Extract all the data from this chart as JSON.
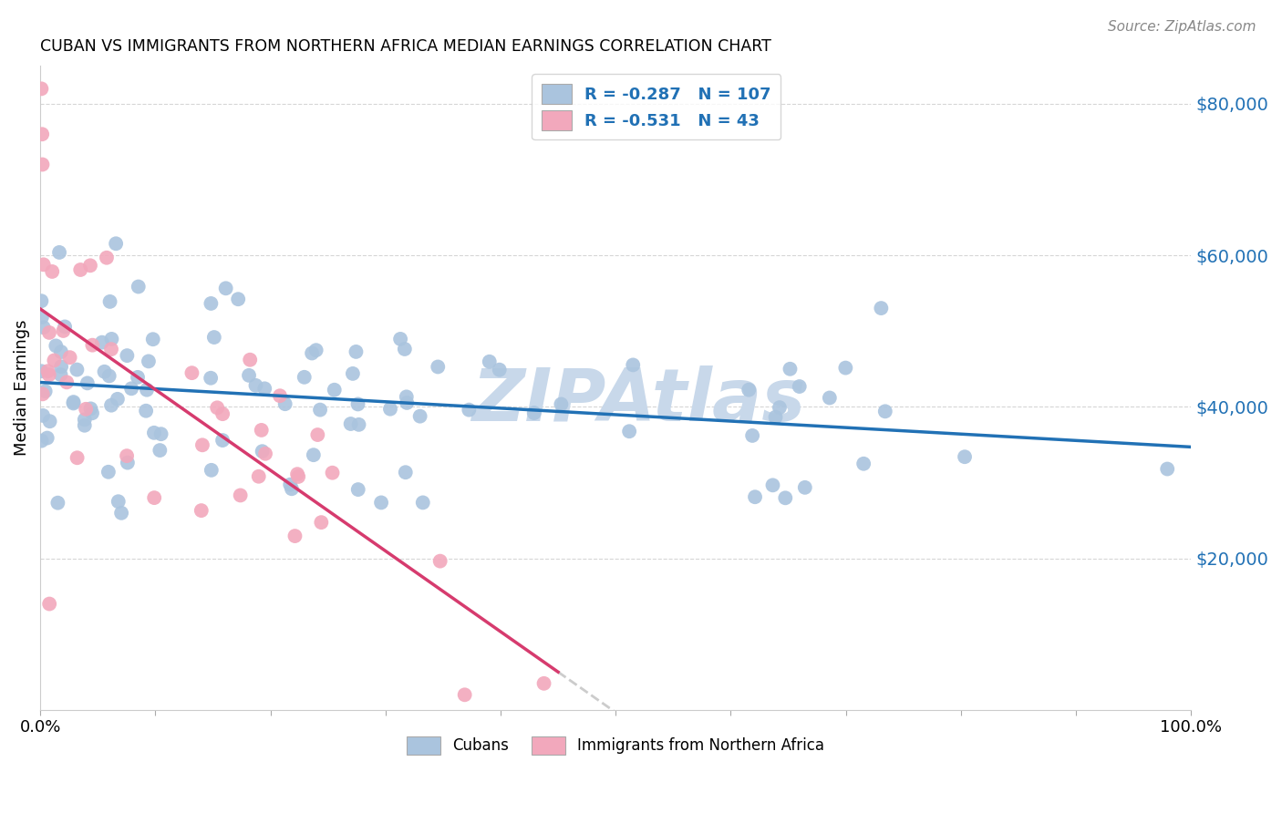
{
  "title": "CUBAN VS IMMIGRANTS FROM NORTHERN AFRICA MEDIAN EARNINGS CORRELATION CHART",
  "source": "Source: ZipAtlas.com",
  "ylabel": "Median Earnings",
  "y_ticks": [
    20000,
    40000,
    60000,
    80000
  ],
  "y_tick_labels": [
    "$20,000",
    "$40,000",
    "$60,000",
    "$80,000"
  ],
  "ylim": [
    0,
    85000
  ],
  "xlim": [
    0.0,
    1.0
  ],
  "cubans_R": -0.287,
  "cubans_N": 107,
  "northern_africa_R": -0.531,
  "northern_africa_N": 43,
  "cubans_color": "#aac4de",
  "northern_africa_color": "#f2a8bc",
  "cubans_line_color": "#2171b5",
  "northern_africa_line_color": "#d63b6e",
  "trend_extension_color": "#cccccc",
  "background_color": "#ffffff",
  "grid_color": "#cccccc",
  "legend_text_color": "#2171b5",
  "watermark_color": "#c8d8ea",
  "right_tick_color": "#2171b5"
}
